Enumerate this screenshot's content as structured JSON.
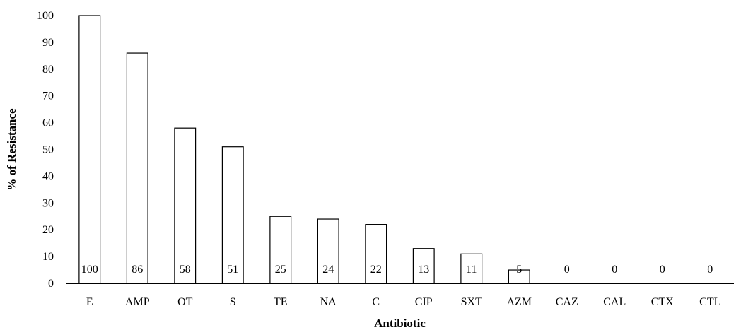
{
  "chart_data": {
    "type": "bar",
    "title": "",
    "xlabel": "Antibiotic",
    "ylabel": "% of Resistance",
    "categories": [
      "E",
      "AMP",
      "OT",
      "S",
      "TE",
      "NA",
      "C",
      "CIP",
      "SXT",
      "AZM",
      "CAZ",
      "CAL",
      "CTX",
      "CTL"
    ],
    "values": [
      100,
      86,
      58,
      51,
      25,
      24,
      22,
      13,
      11,
      5,
      0,
      0,
      0,
      0
    ],
    "data_labels": [
      "100",
      "86",
      "58",
      "51",
      "25",
      "24",
      "22",
      "13",
      "11",
      "5",
      "0",
      "0",
      "0",
      "0"
    ],
    "ylim": [
      0,
      100
    ],
    "yticks": [
      0,
      10,
      20,
      30,
      40,
      50,
      60,
      70,
      80,
      90,
      100
    ],
    "grid": false,
    "legend": "none",
    "bar_fill": "#ffffff",
    "bar_stroke": "#000000"
  }
}
